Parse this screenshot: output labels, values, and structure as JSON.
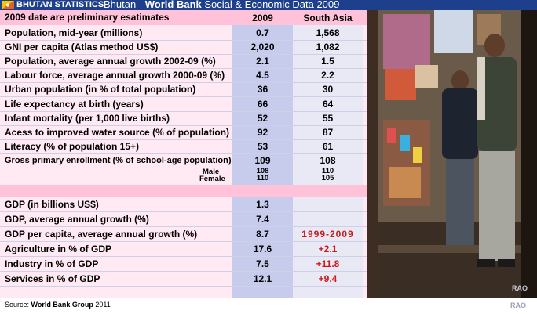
{
  "header": {
    "brand": "BHUTAN STATISTICS",
    "title_country": "Bhutan",
    "title_sep": " - ",
    "title_org": "World Bank",
    "title_rest": " Social & Economic Data 2009",
    "flag_colors": [
      "#f7c600",
      "#e8601f"
    ]
  },
  "table": {
    "note": "2009 date are preliminary esatimates",
    "col_2009": "2009",
    "col_sa": "South Asia",
    "rows": [
      {
        "label": "Population, mid-year (millions)",
        "v2009": "0.7",
        "vsa": "1,568"
      },
      {
        "label": "GNI per capita (Atlas method US$)",
        "v2009": "2,020",
        "vsa": "1,082"
      },
      {
        "label": "Population, average annual growth 2002-09 (%)",
        "v2009": "2.1",
        "vsa": "1.5"
      },
      {
        "label": "Labour force, average annual growth 2000-09 (%)",
        "v2009": "4.5",
        "vsa": "2.2"
      },
      {
        "label": "Urban population (in % of total population)",
        "v2009": "36",
        "vsa": "30"
      },
      {
        "label": "Life expectancy at birth (years)",
        "v2009": "66",
        "vsa": "64"
      },
      {
        "label": "Infant mortality (per 1,000 live births)",
        "v2009": "52",
        "vsa": "55"
      },
      {
        "label": "Acess to improved water source (% of population)",
        "v2009": "92",
        "vsa": "87"
      },
      {
        "label": "Literacy (% of population 15+)",
        "v2009": "53",
        "vsa": "61"
      },
      {
        "label": "Gross primary enrollment (% of school-age population)",
        "v2009": "109",
        "vsa": "108"
      }
    ],
    "enroll_male": {
      "label": "Male",
      "v2009": "108",
      "vsa": "110"
    },
    "enroll_female": {
      "label": "Female",
      "v2009": "110",
      "vsa": "105"
    },
    "gdp_rows": [
      {
        "label": "GDP (in billions US$)",
        "v2009": "1.3",
        "vsa": ""
      },
      {
        "label": "GDP,  average annual growth (%)",
        "v2009": "7.4",
        "vsa": ""
      },
      {
        "label": "GDP per capita, average annual growth (%)",
        "v2009": "8.7",
        "vsa": "1999-2009"
      },
      {
        "label": "Agriculture in % of GDP",
        "v2009": "17.6",
        "vsa": "+2.1"
      },
      {
        "label": "Industry in % of GDP",
        "v2009": "7.5",
        "vsa": "+11.8"
      },
      {
        "label": "Services in % of GDP",
        "v2009": "12.1",
        "vsa": "+9.4"
      }
    ]
  },
  "photo": {
    "watermark": "RAO"
  },
  "footer": {
    "source_label": "Source:",
    "source_org": "World Bank Group",
    "source_year": "2011",
    "watermark": "RAO"
  }
}
